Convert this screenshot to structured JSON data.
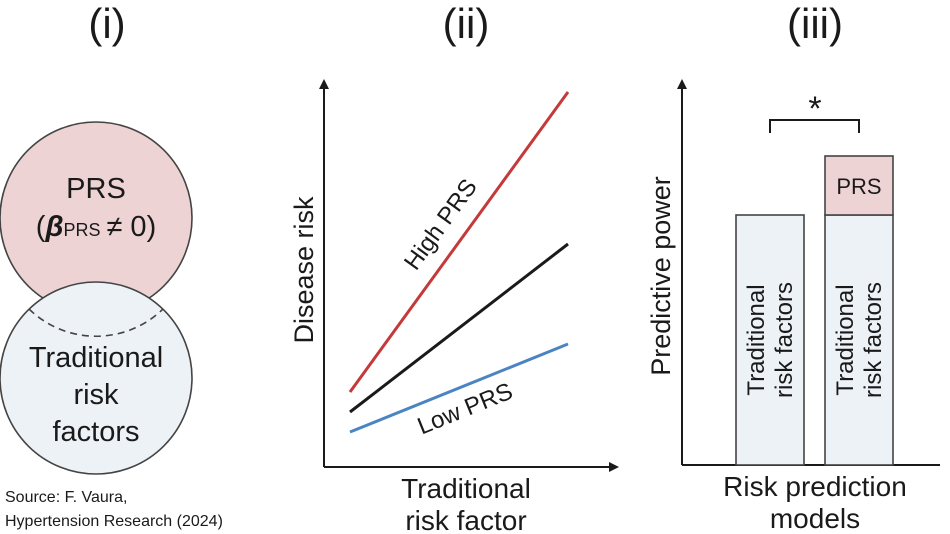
{
  "panels": {
    "p1": {
      "numeral": "(i)",
      "top_circle": {
        "line1": "PRS",
        "beta_symbol": "β",
        "beta_subscript": "PRS",
        "relation": "≠ 0",
        "open_paren": "(",
        "close_paren": ")"
      },
      "bottom_circle": {
        "line1": "Traditional",
        "line2": "risk",
        "line3": "factors"
      }
    },
    "p2": {
      "numeral": "(ii)",
      "ylabel": "Disease risk",
      "xlabel_line1": "Traditional",
      "xlabel_line2": "risk factor",
      "high_label": "High PRS",
      "low_label": "Low PRS"
    },
    "p3": {
      "numeral": "(iii)",
      "ylabel": "Predictive power",
      "xlabel_line1": "Risk prediction",
      "xlabel_line2": "models",
      "significance": "*",
      "bar1": {
        "line1": "Traditional",
        "line2": "risk factors"
      },
      "bar2": {
        "top_label": "PRS",
        "line1": "Traditional",
        "line2": "risk factors"
      }
    }
  },
  "source": {
    "line1": "Source: F. Vaura,",
    "line2": "Hypertension Research (2024)"
  },
  "colors": {
    "prs_fill": "#eed3d4",
    "traditional_fill": "#edf2f7",
    "outline": "#444444",
    "high_line": "#c43a3a",
    "mid_line": "#1a1a1a",
    "low_line": "#4a84c2"
  }
}
